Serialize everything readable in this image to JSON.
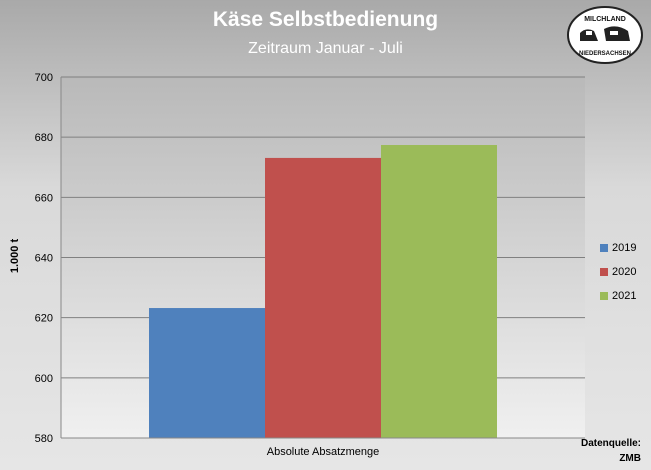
{
  "chart_data": {
    "type": "bar",
    "title": "Käse Selbstbedienung",
    "subtitle": "Zeitraum Januar - Juli",
    "categories": [
      "Absolute Absatzmenge"
    ],
    "series": [
      {
        "name": "2019",
        "values": [
          623.2
        ],
        "color": "#4f81bd"
      },
      {
        "name": "2020",
        "values": [
          673.1
        ],
        "color": "#c0504d"
      },
      {
        "name": "2021",
        "values": [
          677.4
        ],
        "color": "#9bbb59"
      }
    ],
    "xlabel": "",
    "ylabel": "1.000 t",
    "ylim": [
      580,
      700
    ],
    "yticks": [
      580,
      600,
      620,
      640,
      660,
      680,
      700
    ],
    "grid": true,
    "legend": "right"
  },
  "source": {
    "line1": "Datenquelle:",
    "line2": "ZMB"
  },
  "logo": {
    "top": "MILCHLAND",
    "bottom": "NIEDERSACHSEN"
  }
}
